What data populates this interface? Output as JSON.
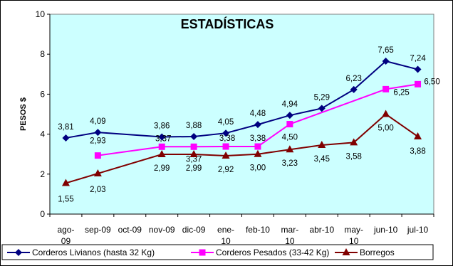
{
  "chart_data": {
    "type": "line",
    "title": "ESTADÍSTICAS",
    "ylabel": "PESOS $",
    "xlabel": "",
    "ylim": [
      0,
      10
    ],
    "yticks": [
      0,
      2,
      4,
      6,
      8,
      10
    ],
    "grid": false,
    "legend_position": "bottom",
    "categories": [
      "ago-09",
      "sep-09",
      "oct-09",
      "nov-09",
      "dic-09",
      "ene-10",
      "feb-10",
      "mar-10",
      "abr-10",
      "may-10",
      "jun-10",
      "jul-10"
    ],
    "series": [
      {
        "name": "Corderos Livianos (hasta 32 Kg)",
        "color": "#000080",
        "marker": "diamond",
        "values": [
          3.81,
          4.09,
          null,
          3.86,
          3.88,
          4.05,
          4.48,
          4.94,
          5.29,
          6.23,
          7.65,
          7.24
        ],
        "labels": [
          "3,81",
          "4,09",
          null,
          "3,86",
          "3,88",
          "4,05",
          "4,48",
          "4,94",
          "5,29",
          "6,23",
          "7,65",
          "7,24"
        ]
      },
      {
        "name": "Corderos Pesados (33-42 Kg)",
        "color": "#ff00ff",
        "marker": "square",
        "values": [
          null,
          2.93,
          null,
          3.37,
          3.37,
          3.38,
          3.38,
          4.5,
          null,
          null,
          6.25,
          6.5
        ],
        "labels": [
          null,
          "2,93",
          null,
          "3,37",
          "3,37",
          "3,38",
          "3,38",
          "4,50",
          null,
          null,
          "6,25",
          "6,50"
        ]
      },
      {
        "name": "Borregos",
        "color": "#800000",
        "marker": "triangle",
        "values": [
          1.55,
          2.03,
          null,
          2.99,
          2.99,
          2.92,
          3.0,
          3.23,
          3.45,
          3.58,
          5.0,
          3.88
        ],
        "labels": [
          "1,55",
          "2,03",
          null,
          "2,99",
          "2,99",
          "2,92",
          "3,00",
          "3,23",
          "3,45",
          "3,58",
          "5,00",
          "3,88"
        ]
      }
    ],
    "colors": {
      "plot_background": "#ccffff",
      "page_background": "#ffffff"
    }
  }
}
